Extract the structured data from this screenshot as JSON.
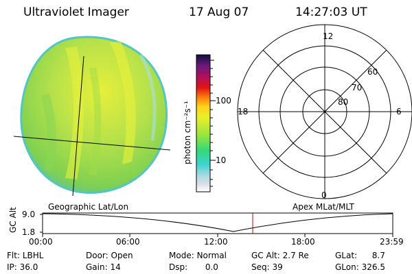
{
  "header": {
    "instrument": "Ultraviolet Imager",
    "date": "17 Aug 07",
    "time": "14:27:03 UT"
  },
  "colorbar": {
    "unit_label": "photon cm⁻²s⁻¹",
    "tick_labels": [
      "100",
      "10"
    ]
  },
  "polar_plot": {
    "mlt_labels": {
      "top": "12",
      "left": "18",
      "right": "6",
      "bottom": "0"
    },
    "lat_labels": [
      "60",
      "70",
      "80"
    ]
  },
  "geo_label": "Geographic Lat/Lon",
  "apex_label": "Apex MLat/MLT",
  "orbit_plot": {
    "y_axis_label": "GC Alt",
    "y_ticks": [
      "9.0",
      "1.8"
    ],
    "x_ticks": [
      "00:00",
      "06:00",
      "12:00",
      "18:00",
      "23:59"
    ]
  },
  "status": {
    "flt_label": "Flt:",
    "flt_value": "LBHL",
    "ip_label": "IP:",
    "ip_value": "36.0",
    "door_label": "Door:",
    "door_value": "Open",
    "gain_label": "Gain:",
    "gain_value": "14",
    "mode_label": "Mode:",
    "mode_value": "Normal",
    "dsp_label": "Dsp:",
    "dsp_value": "0.0",
    "gcalt_label": "GC Alt:",
    "gcalt_value": "2.7 Re",
    "seq_label": "Seq:",
    "seq_value": "39",
    "glat_label": "GLat:",
    "glat_value": "8.7",
    "glon_label": "GLon:",
    "glon_value": "326.5"
  },
  "colors": {
    "earth_disk": "#8fd64a",
    "earth_dayglow": "#d8ec3c",
    "earth_edge": "#4cc3b0",
    "orbit_marker": "#c00000"
  }
}
